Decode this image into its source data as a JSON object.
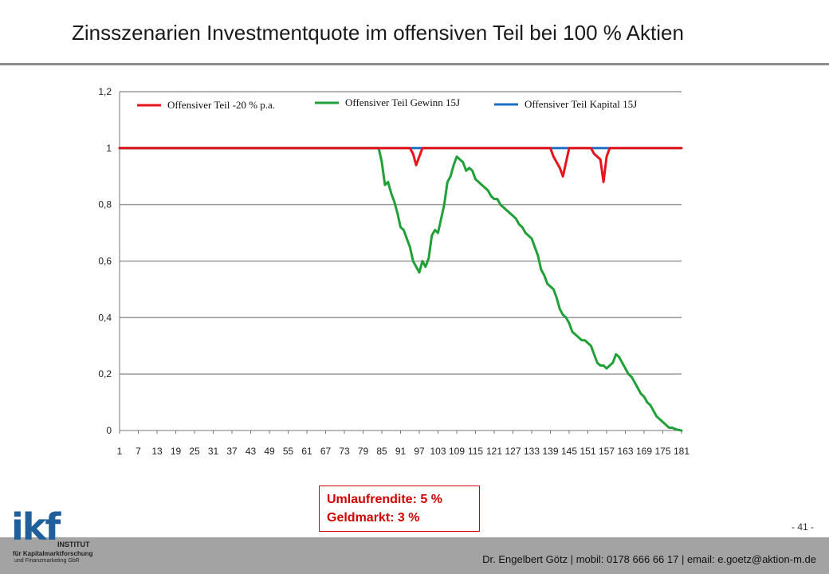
{
  "header": {
    "title": "Zinsszenarien Investmentquote im offensiven Teil bei 100 % Aktien"
  },
  "chart_data": {
    "type": "line",
    "title": "",
    "xlabel": "",
    "ylabel": "",
    "xlim": [
      1,
      181
    ],
    "ylim": [
      0,
      1.2
    ],
    "x_ticks": [
      1,
      7,
      13,
      19,
      25,
      31,
      37,
      43,
      49,
      55,
      61,
      67,
      73,
      79,
      85,
      91,
      97,
      103,
      109,
      115,
      121,
      127,
      133,
      139,
      145,
      151,
      157,
      163,
      169,
      175,
      181
    ],
    "y_ticks": [
      "0",
      "0,2",
      "0,4",
      "0,6",
      "0,8",
      "1",
      "1,2"
    ],
    "y_tick_values": [
      0,
      0.2,
      0.4,
      0.6,
      0.8,
      1.0,
      1.2
    ],
    "grid": "horizontal",
    "legend_position": "top",
    "series": [
      {
        "name": "Offensiver Teil -20 % p.a.",
        "color": "#e8141b",
        "points": [
          [
            1,
            1.0
          ],
          [
            94,
            1.0
          ],
          [
            95,
            0.98
          ],
          [
            96,
            0.94
          ],
          [
            97,
            0.97
          ],
          [
            98,
            1.0
          ],
          [
            139,
            1.0
          ],
          [
            140,
            0.97
          ],
          [
            142,
            0.93
          ],
          [
            143,
            0.9
          ],
          [
            144,
            0.95
          ],
          [
            145,
            1.0
          ],
          [
            152,
            1.0
          ],
          [
            153,
            0.98
          ],
          [
            155,
            0.96
          ],
          [
            156,
            0.88
          ],
          [
            157,
            0.97
          ],
          [
            158,
            1.0
          ],
          [
            181,
            1.0
          ]
        ]
      },
      {
        "name": "Offensiver Teil Gewinn 15J",
        "color": "#21a038",
        "points": [
          [
            1,
            1.0
          ],
          [
            84,
            1.0
          ],
          [
            85,
            0.95
          ],
          [
            86,
            0.87
          ],
          [
            87,
            0.88
          ],
          [
            88,
            0.84
          ],
          [
            89,
            0.81
          ],
          [
            90,
            0.77
          ],
          [
            91,
            0.72
          ],
          [
            92,
            0.71
          ],
          [
            93,
            0.68
          ],
          [
            94,
            0.65
          ],
          [
            95,
            0.6
          ],
          [
            96,
            0.58
          ],
          [
            97,
            0.56
          ],
          [
            98,
            0.6
          ],
          [
            99,
            0.58
          ],
          [
            100,
            0.61
          ],
          [
            101,
            0.69
          ],
          [
            102,
            0.71
          ],
          [
            103,
            0.7
          ],
          [
            104,
            0.75
          ],
          [
            105,
            0.8
          ],
          [
            106,
            0.88
          ],
          [
            107,
            0.9
          ],
          [
            108,
            0.94
          ],
          [
            109,
            0.97
          ],
          [
            110,
            0.96
          ],
          [
            111,
            0.95
          ],
          [
            112,
            0.92
          ],
          [
            113,
            0.93
          ],
          [
            114,
            0.92
          ],
          [
            115,
            0.89
          ],
          [
            116,
            0.88
          ],
          [
            117,
            0.87
          ],
          [
            118,
            0.86
          ],
          [
            119,
            0.85
          ],
          [
            120,
            0.83
          ],
          [
            121,
            0.82
          ],
          [
            122,
            0.82
          ],
          [
            123,
            0.8
          ],
          [
            124,
            0.79
          ],
          [
            125,
            0.78
          ],
          [
            126,
            0.77
          ],
          [
            127,
            0.76
          ],
          [
            128,
            0.75
          ],
          [
            129,
            0.73
          ],
          [
            130,
            0.72
          ],
          [
            131,
            0.7
          ],
          [
            132,
            0.69
          ],
          [
            133,
            0.68
          ],
          [
            134,
            0.65
          ],
          [
            135,
            0.62
          ],
          [
            136,
            0.57
          ],
          [
            137,
            0.55
          ],
          [
            138,
            0.52
          ],
          [
            139,
            0.51
          ],
          [
            140,
            0.5
          ],
          [
            141,
            0.47
          ],
          [
            142,
            0.43
          ],
          [
            143,
            0.41
          ],
          [
            144,
            0.4
          ],
          [
            145,
            0.38
          ],
          [
            146,
            0.35
          ],
          [
            147,
            0.34
          ],
          [
            148,
            0.33
          ],
          [
            149,
            0.32
          ],
          [
            150,
            0.32
          ],
          [
            151,
            0.31
          ],
          [
            152,
            0.3
          ],
          [
            153,
            0.27
          ],
          [
            154,
            0.24
          ],
          [
            155,
            0.23
          ],
          [
            156,
            0.23
          ],
          [
            157,
            0.22
          ],
          [
            158,
            0.23
          ],
          [
            159,
            0.24
          ],
          [
            160,
            0.27
          ],
          [
            161,
            0.26
          ],
          [
            162,
            0.24
          ],
          [
            163,
            0.22
          ],
          [
            164,
            0.2
          ],
          [
            165,
            0.19
          ],
          [
            166,
            0.17
          ],
          [
            167,
            0.15
          ],
          [
            168,
            0.13
          ],
          [
            169,
            0.12
          ],
          [
            170,
            0.1
          ],
          [
            171,
            0.09
          ],
          [
            172,
            0.07
          ],
          [
            173,
            0.05
          ],
          [
            174,
            0.04
          ],
          [
            175,
            0.03
          ],
          [
            176,
            0.02
          ],
          [
            177,
            0.01
          ],
          [
            178,
            0.01
          ],
          [
            179,
            0.005
          ],
          [
            180,
            0.002
          ],
          [
            181,
            0.0
          ]
        ]
      },
      {
        "name": "Offensiver Teil Kapital 15J",
        "color": "#1f6fc4",
        "points": [
          [
            1,
            1.0
          ],
          [
            181,
            1.0
          ]
        ]
      }
    ]
  },
  "info_box": {
    "line1": "Umlaufrendite: 5 %",
    "line2": "Geldmarkt: 3 %"
  },
  "page_number": "- 41 -",
  "footer": {
    "text": "Dr. Engelbert Götz  |  mobil: 0178 666 66 17  |  email: e.goetz@aktion-m.de"
  },
  "logo": {
    "mark": "ikf",
    "line1": "INSTITUT",
    "line2": "für Kapitalmarktforschung",
    "line3": "und Finanzmarketing GbR",
    "color": "#1f5f9c"
  }
}
